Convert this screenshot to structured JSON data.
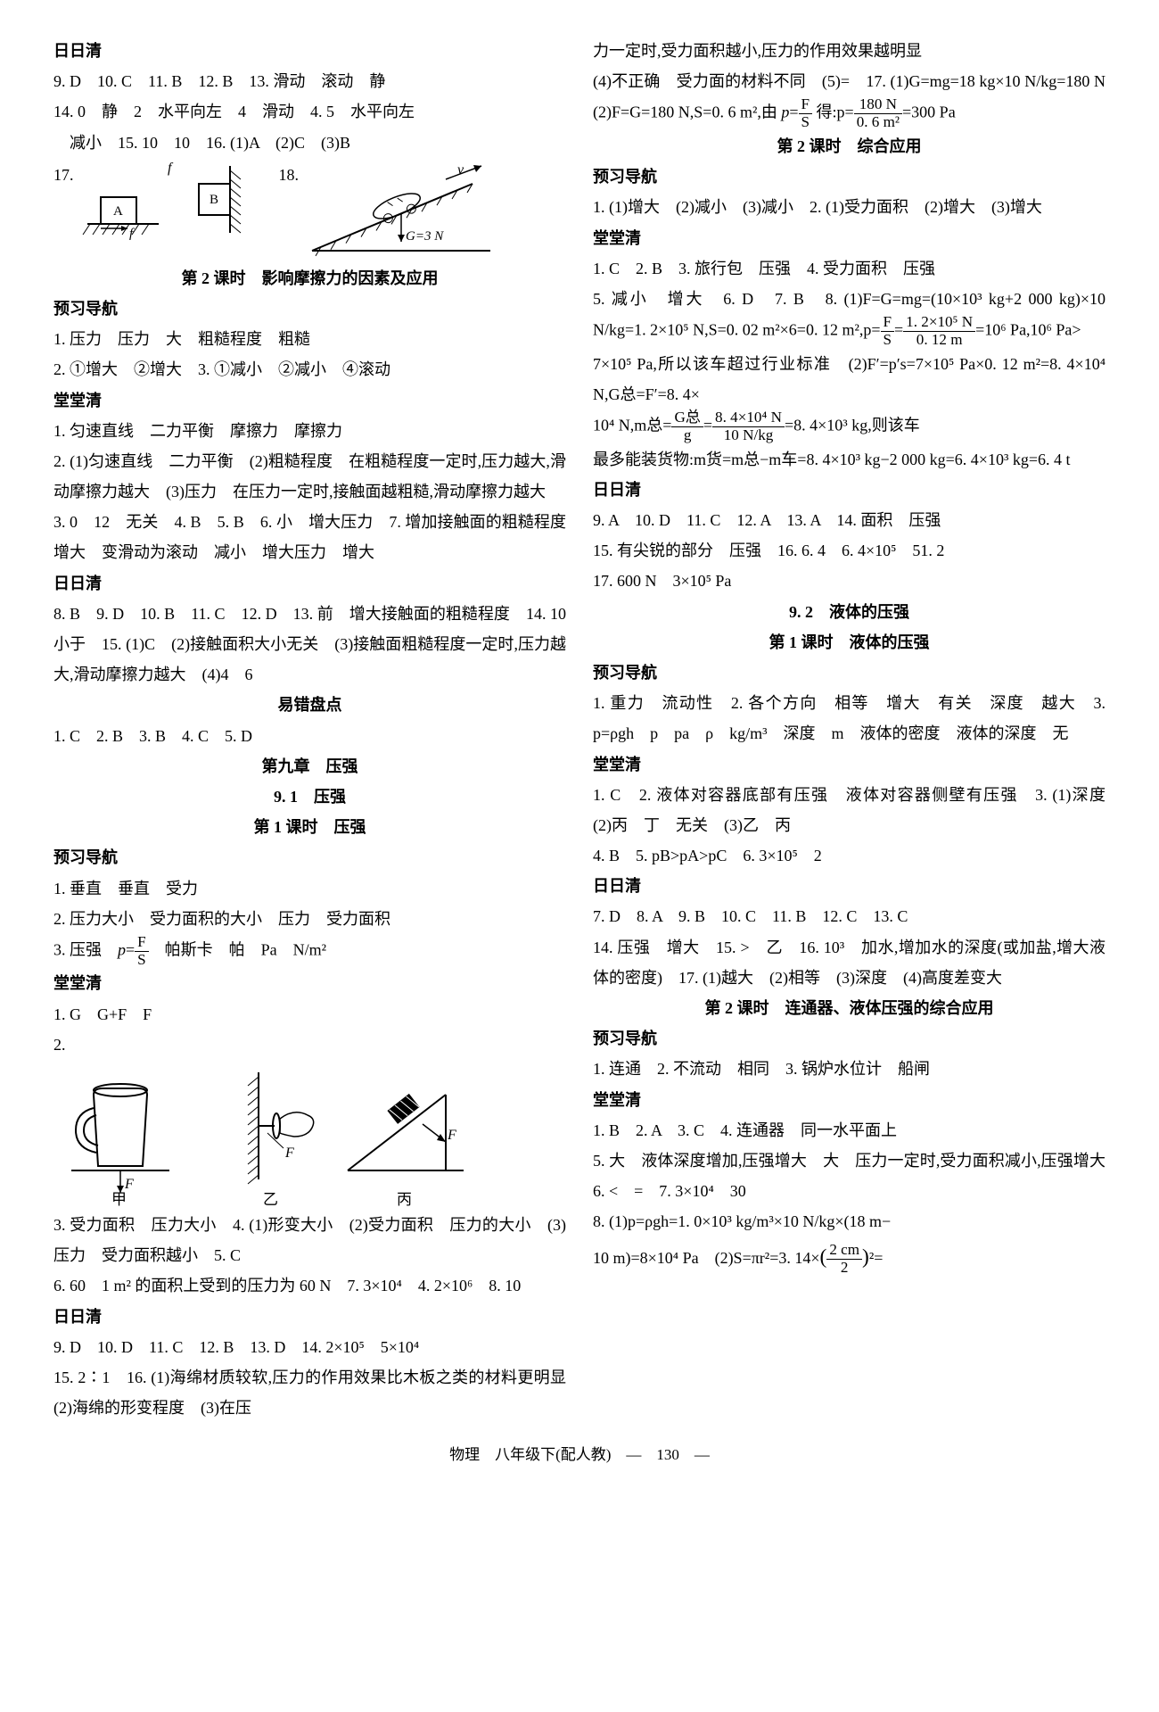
{
  "footer": "物理　八年级下(配人教)　—　130　—",
  "left": {
    "parts": [
      {
        "t": "p",
        "cls": "bold",
        "text": "日日清"
      },
      {
        "t": "p",
        "text": "9. D　10. C　11. B　12. B　13. 滑动　滚动　静"
      },
      {
        "t": "p",
        "text": "14. 0　静　2　水平向左　4　滑动　4. 5　水平向左"
      },
      {
        "t": "p",
        "cls": "indent",
        "text": "减小　15. 10　10　16. (1)A　(2)C　(3)B"
      },
      {
        "t": "row1718"
      },
      {
        "t": "p",
        "cls": "center kaiti",
        "text": "第 2 课时　影响摩擦力的因素及应用"
      },
      {
        "t": "p",
        "cls": "bold",
        "text": "预习导航"
      },
      {
        "t": "p",
        "text": "1. 压力　压力　大　粗糙程度　粗糙"
      },
      {
        "t": "p",
        "text": "2. ①增大　②增大　3. ①减小　②减小　④滚动"
      },
      {
        "t": "p",
        "cls": "bold",
        "text": "堂堂清"
      },
      {
        "t": "p",
        "text": "1. 匀速直线　二力平衡　摩擦力　摩擦力"
      },
      {
        "t": "p",
        "text": "2. (1)匀速直线　二力平衡　(2)粗糙程度　在粗糙程度一定时,压力越大,滑动摩擦力越大　(3)压力　在压力一定时,接触面越粗糙,滑动摩擦力越大"
      },
      {
        "t": "p",
        "text": "3. 0　12　无关　4. B　5. B　6. 小　增大压力　7. 增加接触面的粗糙程度　增大　变滑动为滚动　减小　增大压力　增大"
      },
      {
        "t": "p",
        "cls": "bold",
        "text": "日日清"
      },
      {
        "t": "p",
        "text": "8. B　9. D　10. B　11. C　12. D　13. 前　增大接触面的粗糙程度　14. 10　小于　15. (1)C　(2)接触面积大小无关　(3)接触面粗糙程度一定时,压力越大,滑动摩擦力越大　(4)4　6"
      },
      {
        "t": "p",
        "cls": "center kaiti",
        "text": "易错盘点"
      },
      {
        "t": "p",
        "text": "1. C　2. B　3. B　4. C　5. D"
      },
      {
        "t": "p",
        "cls": "center bold",
        "text": "第九章　压强"
      },
      {
        "t": "p",
        "cls": "center kaiti",
        "text": "9. 1　压强"
      },
      {
        "t": "p",
        "cls": "center kaiti",
        "text": "第 1 课时　压强"
      },
      {
        "t": "p",
        "cls": "bold",
        "text": "预习导航"
      },
      {
        "t": "p",
        "text": "1. 垂直　垂直　受力"
      },
      {
        "t": "p",
        "text": "2. 压力大小　受力面积的大小　压力　受力面积"
      },
      {
        "t": "frac_p_FS",
        "prefix": "3. 压强　",
        "num": "F",
        "den": "S",
        "suffix": "　帕斯卡　帕　Pa　N/m²"
      },
      {
        "t": "p",
        "cls": "bold",
        "text": "堂堂清"
      },
      {
        "t": "p",
        "text": "1. G　G+F　F"
      },
      {
        "t": "p",
        "text": "2."
      },
      {
        "t": "svg3"
      },
      {
        "t": "p",
        "text": "3. 受力面积　压力大小　4. (1)形变大小　(2)受力面积　压力的大小　(3)压力　受力面积越小　5. C"
      },
      {
        "t": "p",
        "text": "6. 60　1 m² 的面积上受到的压力为 60 N　7. 3×10⁴　4. 2×10⁶　8. 10"
      },
      {
        "t": "p",
        "cls": "bold",
        "text": "日日清"
      },
      {
        "t": "p",
        "text": "9. D　10. D　11. C　12. B　13. D　14. 2×10⁵　5×10⁴"
      },
      {
        "t": "p",
        "text": "15. 2∶1　16. (1)海绵材质较软,压力的作用效果比木板之类的材料更明显　(2)海绵的形变程度　(3)在压"
      }
    ]
  },
  "right": {
    "parts": [
      {
        "t": "p",
        "text": "力一定时,受力面积越小,压力的作用效果越明显"
      },
      {
        "t": "frac_line1",
        "a": "(4)不正确　受力面的材料不同　(5)=　17. (1)G=mg=18 kg×10 N/kg=180 N　(2)F=G=180 N,S=0. 6 m²,由 ",
        "num1": "F",
        "den1": "S",
        "mid": " 得:p=",
        "num2": "180 N",
        "den2": "0. 6 m²",
        "tail": "=300 Pa"
      },
      {
        "t": "p",
        "cls": "center kaiti",
        "text": "第 2 课时　综合应用"
      },
      {
        "t": "p",
        "cls": "bold",
        "text": "预习导航"
      },
      {
        "t": "p",
        "text": "1. (1)增大　(2)减小　(3)减小　2. (1)受力面积　(2)增大　(3)增大"
      },
      {
        "t": "p",
        "cls": "bold",
        "text": "堂堂清"
      },
      {
        "t": "p",
        "text": "1. C　2. B　3. 旅行包　压强　4. 受力面积　压强"
      },
      {
        "t": "frac_line2",
        "a": "5. 减小　增大　6. D　7. B　8. (1)F=G=mg=(10×10³ kg+2 000 kg)×10 N/kg=1. 2×10⁵ N,S=0. 02 m²×6=0. 12 m²,p=",
        "num1": "F",
        "den1": "S",
        "mid": "=",
        "num2": "1. 2×10⁵ N",
        "den2": "0. 12 m",
        "tail": "=10⁶ Pa,10⁶ Pa>"
      },
      {
        "t": "p",
        "text": "7×10⁵ Pa,所以该车超过行业标准　(2)F′=p′s=7×10⁵ Pa×0. 12 m²=8. 4×10⁴ N,G总=F′=8. 4×"
      },
      {
        "t": "frac_line3",
        "a": "10⁴ N,m总=",
        "num1": "G总",
        "den1": "g",
        "mid": "=",
        "num2": "8. 4×10⁴ N",
        "den2": "10 N/kg",
        "tail": "=8. 4×10³ kg,则该车"
      },
      {
        "t": "p",
        "text": "最多能装货物:m货=m总−m车=8. 4×10³ kg−2 000 kg=6. 4×10³ kg=6. 4 t"
      },
      {
        "t": "p",
        "cls": "bold",
        "text": "日日清"
      },
      {
        "t": "p",
        "text": "9. A　10. D　11. C　12. A　13. A　14. 面积　压强"
      },
      {
        "t": "p",
        "text": "15. 有尖锐的部分　压强　16. 6. 4　6. 4×10⁵　51. 2"
      },
      {
        "t": "p",
        "text": "17. 600 N　3×10⁵ Pa"
      },
      {
        "t": "p",
        "cls": "center kaiti",
        "text": "9. 2　液体的压强"
      },
      {
        "t": "p",
        "cls": "center kaiti",
        "text": "第 1 课时　液体的压强"
      },
      {
        "t": "p",
        "cls": "bold",
        "text": "预习导航"
      },
      {
        "t": "p",
        "text": "1. 重力　流动性　2. 各个方向　相等　增大　有关　深度　越大　3. p=ρgh　p　pa　ρ　kg/m³　深度　m　液体的密度　液体的深度　无"
      },
      {
        "t": "p",
        "cls": "bold",
        "text": "堂堂清"
      },
      {
        "t": "p",
        "text": "1. C　2. 液体对容器底部有压强　液体对容器侧壁有压强　3. (1)深度　(2)丙　丁　无关　(3)乙　丙"
      },
      {
        "t": "p",
        "text": "4. B　5. pB>pA>pC　6. 3×10⁵　2"
      },
      {
        "t": "p",
        "cls": "bold",
        "text": "日日清"
      },
      {
        "t": "p",
        "text": "7. D　8. A　9. B　10. C　11. B　12. C　13. C"
      },
      {
        "t": "p",
        "text": "14. 压强　增大　15. >　乙　16. 10³　加水,增加水的深度(或加盐,增大液体的密度)　17. (1)越大　(2)相等　(3)深度　(4)高度差变大"
      },
      {
        "t": "p",
        "cls": "center kaiti",
        "text": "第 2 课时　连通器、液体压强的综合应用"
      },
      {
        "t": "p",
        "cls": "bold",
        "text": "预习导航"
      },
      {
        "t": "p",
        "text": "1. 连通　2. 不流动　相同　3. 锅炉水位计　船闸"
      },
      {
        "t": "p",
        "cls": "bold",
        "text": "堂堂清"
      },
      {
        "t": "p",
        "text": "1. B　2. A　3. C　4. 连通器　同一水平面上"
      },
      {
        "t": "p",
        "text": "5. 大　液体深度增加,压强增大　大　压力一定时,受力面积减小,压强增大　6. <　=　7. 3×10⁴　30"
      },
      {
        "t": "p",
        "text": "8. (1)p=ρgh=1. 0×10³ kg/m³×10 N/kg×(18 m−"
      },
      {
        "t": "frac_line4",
        "a": "10 m)=8×10⁴ Pa　(2)S=πr²=3. 14×",
        "num": "2 cm",
        "den": "2",
        "tail": "²="
      }
    ]
  },
  "svg17": {
    "labelA": "A",
    "f1": "f",
    "f2": "f",
    "labelB": "B"
  },
  "svg18": {
    "v": "v",
    "G": "G=3 N"
  },
  "svg3": {
    "F1": "F",
    "F2": "F",
    "l1": "甲",
    "l2": "乙",
    "l3": "丙"
  }
}
